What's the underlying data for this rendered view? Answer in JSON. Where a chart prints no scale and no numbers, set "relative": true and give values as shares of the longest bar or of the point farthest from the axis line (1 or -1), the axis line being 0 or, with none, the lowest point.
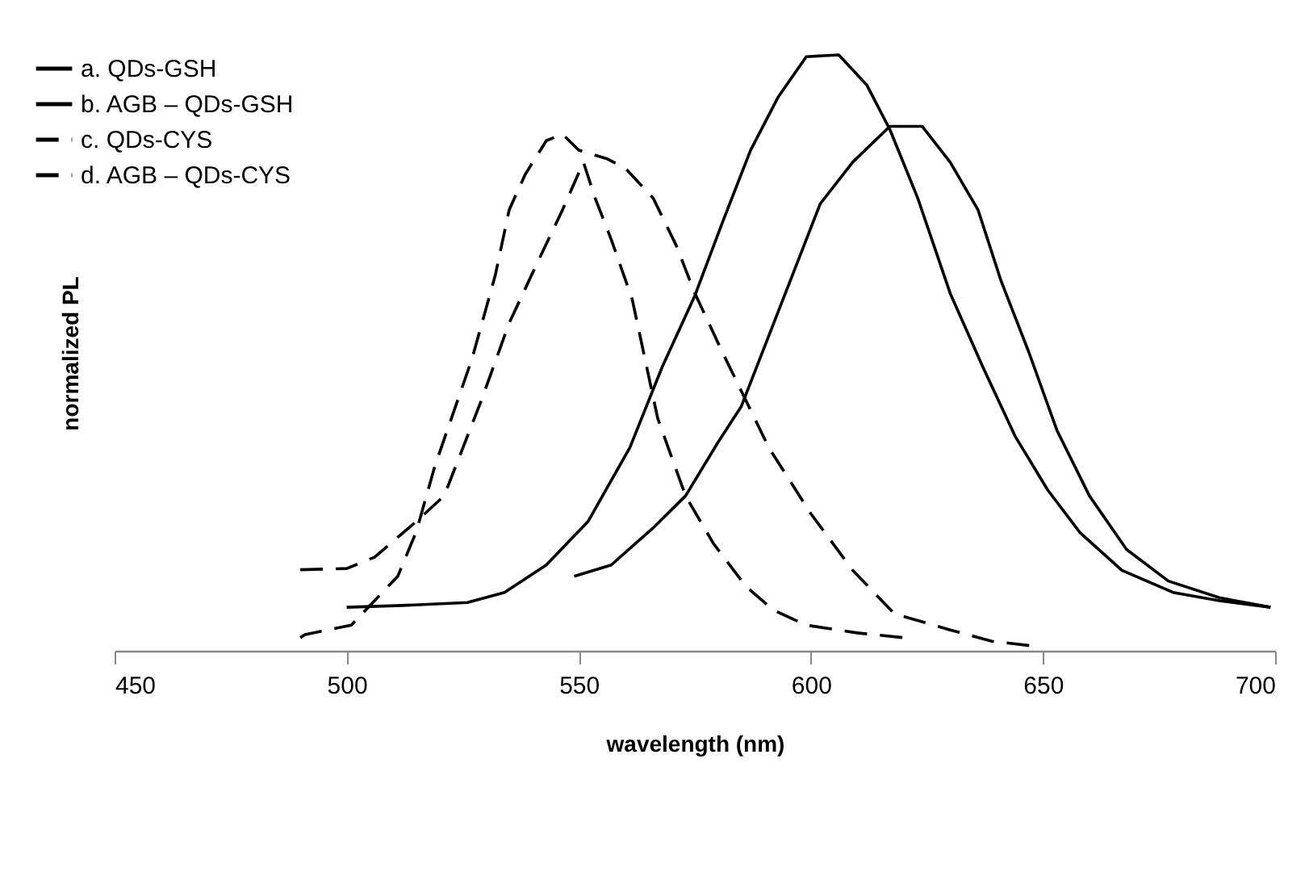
{
  "chart_data": {
    "type": "line",
    "relative": true,
    "xlabel": "wavelength (nm)",
    "ylabel": "normalized PL",
    "xlim": [
      450,
      700
    ],
    "xticks": [
      450,
      500,
      550,
      600,
      650,
      700
    ],
    "legend": "top left",
    "grid": false,
    "marker": "none",
    "series": [
      {
        "name": "a. QDs-GSH",
        "color": "#000000",
        "line_style": "solid",
        "x": [
          500,
          512,
          526,
          534,
          543,
          552,
          561,
          568,
          575,
          581,
          587,
          593,
          599,
          606,
          612,
          617,
          623,
          630,
          637,
          644,
          651,
          658,
          667,
          678,
          688,
          699
        ],
        "values": [
          0.073,
          0.076,
          0.081,
          0.098,
          0.144,
          0.217,
          0.341,
          0.477,
          0.596,
          0.72,
          0.84,
          0.93,
          0.997,
          1.0,
          0.95,
          0.875,
          0.76,
          0.6,
          0.477,
          0.36,
          0.27,
          0.198,
          0.135,
          0.098,
          0.084,
          0.073
        ]
      },
      {
        "name": "b. AGB – QDs-GSH",
        "color": "#000000",
        "line_style": "solid",
        "x": [
          549,
          557,
          566,
          573,
          580,
          585,
          591,
          596,
          602,
          609,
          617,
          624,
          630,
          636,
          641,
          647,
          653,
          660,
          668,
          677,
          688,
          699
        ],
        "values": [
          0.125,
          0.144,
          0.206,
          0.26,
          0.35,
          0.41,
          0.53,
          0.63,
          0.75,
          0.82,
          0.88,
          0.88,
          0.82,
          0.74,
          0.62,
          0.5,
          0.37,
          0.26,
          0.17,
          0.117,
          0.089,
          0.073
        ]
      },
      {
        "name": "c. QDs-CYS",
        "color": "#000000",
        "line_style": "dashed",
        "x": [
          490,
          500,
          506,
          515,
          521,
          529,
          535,
          541,
          546.5,
          551,
          553.5,
          557,
          561.5,
          567,
          573,
          579,
          586,
          592,
          599,
          610,
          620
        ],
        "values": [
          0.136,
          0.138,
          0.157,
          0.217,
          0.26,
          0.42,
          0.55,
          0.65,
          0.74,
          0.82,
          0.76,
          0.69,
          0.59,
          0.39,
          0.26,
          0.18,
          0.108,
          0.068,
          0.043,
          0.03,
          0.022
        ]
      },
      {
        "name": "d. AGB – QDs-CYS",
        "color": "#000000",
        "line_style": "dashed",
        "x": [
          490,
          491,
          501,
          511,
          515,
          519,
          527,
          532,
          535,
          538.5,
          543,
          546.5,
          550,
          556,
          560,
          566,
          571,
          575,
          581,
          591,
          600,
          609,
          618,
          630,
          639,
          648
        ],
        "values": [
          0.022,
          0.027,
          0.043,
          0.125,
          0.2,
          0.31,
          0.49,
          0.63,
          0.74,
          0.8,
          0.856,
          0.867,
          0.84,
          0.826,
          0.81,
          0.76,
          0.68,
          0.6,
          0.5,
          0.34,
          0.23,
          0.135,
          0.062,
          0.035,
          0.016,
          0.008
        ]
      }
    ]
  }
}
